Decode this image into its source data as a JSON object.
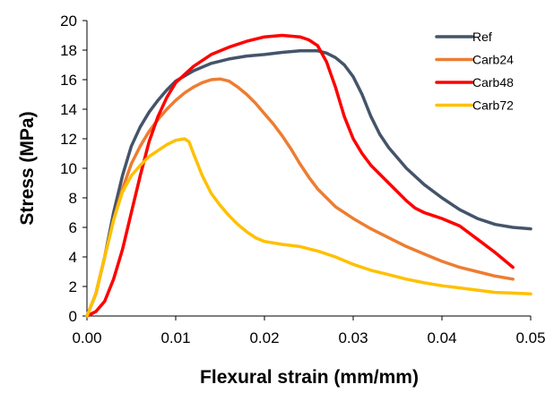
{
  "chart_data": {
    "type": "line",
    "xlabel": "Flexural strain (mm/mm)",
    "ylabel": "Stress (MPa)",
    "xlim": [
      0,
      0.05
    ],
    "ylim": [
      0,
      20
    ],
    "x_ticks": [
      "0.00",
      "0.01",
      "0.02",
      "0.03",
      "0.04",
      "0.05"
    ],
    "y_ticks": [
      "0",
      "2",
      "4",
      "6",
      "8",
      "10",
      "12",
      "14",
      "16",
      "18",
      "20"
    ],
    "grid": false,
    "legend_position": "top-right",
    "series": [
      {
        "name": "Ref",
        "color": "#44546a",
        "points": [
          [
            0,
            0
          ],
          [
            0.001,
            1.5
          ],
          [
            0.002,
            4
          ],
          [
            0.003,
            7
          ],
          [
            0.004,
            9.5
          ],
          [
            0.005,
            11.5
          ],
          [
            0.006,
            12.8
          ],
          [
            0.007,
            13.8
          ],
          [
            0.008,
            14.6
          ],
          [
            0.009,
            15.3
          ],
          [
            0.01,
            15.9
          ],
          [
            0.012,
            16.6
          ],
          [
            0.014,
            17.1
          ],
          [
            0.016,
            17.4
          ],
          [
            0.018,
            17.6
          ],
          [
            0.02,
            17.7
          ],
          [
            0.022,
            17.85
          ],
          [
            0.024,
            17.95
          ],
          [
            0.026,
            17.95
          ],
          [
            0.027,
            17.8
          ],
          [
            0.028,
            17.5
          ],
          [
            0.029,
            17
          ],
          [
            0.03,
            16.2
          ],
          [
            0.031,
            15
          ],
          [
            0.032,
            13.5
          ],
          [
            0.033,
            12.3
          ],
          [
            0.034,
            11.4
          ],
          [
            0.036,
            10
          ],
          [
            0.038,
            8.9
          ],
          [
            0.04,
            8
          ],
          [
            0.042,
            7.2
          ],
          [
            0.044,
            6.6
          ],
          [
            0.046,
            6.2
          ],
          [
            0.048,
            6
          ],
          [
            0.05,
            5.9
          ]
        ]
      },
      {
        "name": "Carb24",
        "color": "#ed7d31",
        "points": [
          [
            0,
            0
          ],
          [
            0.001,
            1.5
          ],
          [
            0.002,
            4
          ],
          [
            0.003,
            6.5
          ],
          [
            0.004,
            8.6
          ],
          [
            0.005,
            10.3
          ],
          [
            0.006,
            11.5
          ],
          [
            0.007,
            12.5
          ],
          [
            0.008,
            13.3
          ],
          [
            0.009,
            14
          ],
          [
            0.01,
            14.6
          ],
          [
            0.011,
            15.1
          ],
          [
            0.012,
            15.5
          ],
          [
            0.013,
            15.8
          ],
          [
            0.014,
            16
          ],
          [
            0.015,
            16.05
          ],
          [
            0.016,
            15.9
          ],
          [
            0.017,
            15.5
          ],
          [
            0.018,
            15
          ],
          [
            0.019,
            14.4
          ],
          [
            0.02,
            13.7
          ],
          [
            0.021,
            13
          ],
          [
            0.022,
            12.2
          ],
          [
            0.023,
            11.3
          ],
          [
            0.024,
            10.3
          ],
          [
            0.025,
            9.4
          ],
          [
            0.026,
            8.6
          ],
          [
            0.027,
            8
          ],
          [
            0.028,
            7.4
          ],
          [
            0.03,
            6.6
          ],
          [
            0.032,
            5.9
          ],
          [
            0.034,
            5.3
          ],
          [
            0.036,
            4.7
          ],
          [
            0.038,
            4.2
          ],
          [
            0.04,
            3.7
          ],
          [
            0.042,
            3.3
          ],
          [
            0.044,
            3
          ],
          [
            0.046,
            2.7
          ],
          [
            0.048,
            2.5
          ]
        ]
      },
      {
        "name": "Carb48",
        "color": "#ff0000",
        "points": [
          [
            0,
            0
          ],
          [
            0.001,
            0.3
          ],
          [
            0.002,
            1
          ],
          [
            0.003,
            2.5
          ],
          [
            0.004,
            4.5
          ],
          [
            0.005,
            7
          ],
          [
            0.006,
            9.5
          ],
          [
            0.007,
            11.8
          ],
          [
            0.008,
            13.5
          ],
          [
            0.009,
            14.8
          ],
          [
            0.01,
            15.8
          ],
          [
            0.012,
            16.9
          ],
          [
            0.014,
            17.7
          ],
          [
            0.016,
            18.2
          ],
          [
            0.018,
            18.6
          ],
          [
            0.02,
            18.9
          ],
          [
            0.022,
            19
          ],
          [
            0.024,
            18.9
          ],
          [
            0.025,
            18.7
          ],
          [
            0.026,
            18.3
          ],
          [
            0.027,
            17.2
          ],
          [
            0.028,
            15.5
          ],
          [
            0.029,
            13.5
          ],
          [
            0.03,
            12
          ],
          [
            0.031,
            11
          ],
          [
            0.032,
            10.2
          ],
          [
            0.033,
            9.6
          ],
          [
            0.034,
            9
          ],
          [
            0.035,
            8.4
          ],
          [
            0.036,
            7.8
          ],
          [
            0.037,
            7.3
          ],
          [
            0.038,
            7
          ],
          [
            0.039,
            6.8
          ],
          [
            0.04,
            6.6
          ],
          [
            0.042,
            6.1
          ],
          [
            0.044,
            5.2
          ],
          [
            0.046,
            4.3
          ],
          [
            0.048,
            3.3
          ]
        ]
      },
      {
        "name": "Carb72",
        "color": "#ffc000",
        "points": [
          [
            0,
            0
          ],
          [
            0.001,
            1.5
          ],
          [
            0.002,
            4
          ],
          [
            0.003,
            6.5
          ],
          [
            0.004,
            8.4
          ],
          [
            0.005,
            9.5
          ],
          [
            0.006,
            10.2
          ],
          [
            0.007,
            10.8
          ],
          [
            0.008,
            11.2
          ],
          [
            0.009,
            11.6
          ],
          [
            0.01,
            11.9
          ],
          [
            0.011,
            12
          ],
          [
            0.0115,
            11.8
          ],
          [
            0.012,
            11
          ],
          [
            0.013,
            9.5
          ],
          [
            0.014,
            8.3
          ],
          [
            0.015,
            7.5
          ],
          [
            0.016,
            6.8
          ],
          [
            0.017,
            6.2
          ],
          [
            0.018,
            5.7
          ],
          [
            0.019,
            5.3
          ],
          [
            0.02,
            5.05
          ],
          [
            0.022,
            4.85
          ],
          [
            0.024,
            4.7
          ],
          [
            0.026,
            4.4
          ],
          [
            0.028,
            4
          ],
          [
            0.03,
            3.5
          ],
          [
            0.032,
            3.1
          ],
          [
            0.034,
            2.8
          ],
          [
            0.036,
            2.5
          ],
          [
            0.038,
            2.25
          ],
          [
            0.04,
            2.05
          ],
          [
            0.042,
            1.9
          ],
          [
            0.044,
            1.75
          ],
          [
            0.046,
            1.6
          ],
          [
            0.048,
            1.55
          ],
          [
            0.05,
            1.5
          ]
        ]
      }
    ]
  }
}
